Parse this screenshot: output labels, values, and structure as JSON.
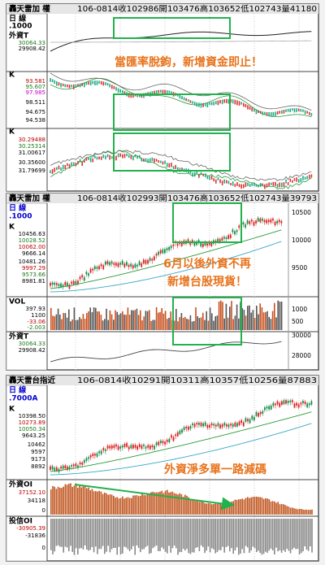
{
  "panels": [
    {
      "title": "轟天雷加 權",
      "header": "106-0814收102986開103476高103652低102743量41180",
      "labels": [
        "日 線",
        ".1000",
        "外資T",
        "30064.33",
        "29908.42",
        "K",
        "93.581",
        "95.607",
        "97.985",
        "98.511",
        "94.675",
        "94.538",
        "K",
        "30.29488",
        "30.25314",
        "31.00617",
        "30.35600",
        "31.79699"
      ],
      "annotations": [
        "當匯率脫鉤，新增資金即止！"
      ],
      "right_ticks": []
    },
    {
      "title": "轟天雷加 權",
      "header": "106-0814收102993開103476高103652低102743量39793",
      "labels": [
        "日 線",
        ".1000",
        "K",
        "10456.63",
        "10028.52",
        "10062.00",
        "9666.14",
        "10481.26",
        "9997.29",
        "9573.66",
        "8981.81",
        "VOL",
        "397.93",
        "1100",
        "-33.06",
        "-2.003",
        "外資T",
        "30064.33",
        "29908.42"
      ],
      "annotations": [
        "6月以後外資不再",
        "新增台股現貨！"
      ],
      "right_ticks": [
        "10500",
        "10000",
        "9500",
        "1000",
        "500",
        "30000",
        "28000"
      ]
    },
    {
      "title": "轟天雷台指近",
      "header": "106-0814收10291開10311高10357低10256量87883",
      "labels": [
        "日 線",
        ".7000A",
        "K",
        "10398.50",
        "10273.89",
        "10050.34",
        "9643.25",
        "10462",
        "9597",
        "9173",
        "8892",
        "外資OI",
        "37152.10",
        "34118",
        "0",
        "投信OI",
        "-30905.39",
        "-31836",
        "0"
      ],
      "annotations": [
        "外資淨多單一路減碼"
      ],
      "right_ticks": []
    }
  ]
}
